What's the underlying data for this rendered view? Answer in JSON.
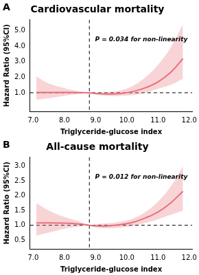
{
  "chart_data": [
    {
      "type": "line",
      "panel_label": "A",
      "title": "Cardiovascular mortality",
      "x_label": "Triglyceride-glucose index",
      "y_label": "Hazard Ratio (95%CI)",
      "annotation": "P = 0.034 for non-linearity",
      "x": [
        7.1,
        7.5,
        8.0,
        8.5,
        8.8,
        9.0,
        9.4,
        9.8,
        10.2,
        10.6,
        11.0,
        11.4,
        11.8
      ],
      "values": [
        1.02,
        1.02,
        1.02,
        1.01,
        1.0,
        0.95,
        0.92,
        0.95,
        1.08,
        1.32,
        1.7,
        2.3,
        3.2
      ],
      "ci_lower": [
        0.55,
        0.65,
        0.8,
        0.93,
        1.0,
        0.88,
        0.8,
        0.8,
        0.85,
        1.0,
        1.25,
        1.5,
        1.9
      ],
      "ci_upper": [
        2.05,
        1.6,
        1.3,
        1.08,
        1.0,
        1.0,
        1.05,
        1.15,
        1.45,
        2.0,
        2.8,
        3.9,
        5.4
      ],
      "color": "#e8707a",
      "vline": 8.8,
      "hline": 1,
      "xlim": [
        6.9,
        12.1
      ],
      "xticks": [
        {
          "value": 7,
          "label": "7.0"
        },
        {
          "value": 8,
          "label": "8.0"
        },
        {
          "value": 9,
          "label": "9.0"
        },
        {
          "value": 10,
          "label": "10.0"
        },
        {
          "value": 11,
          "label": "11.0"
        },
        {
          "value": 12,
          "label": "12.0"
        }
      ],
      "ylim": [
        -0.2,
        5.7
      ],
      "yticks": [
        {
          "value": 1,
          "label": "1.0"
        },
        {
          "value": 2,
          "label": "2.0"
        },
        {
          "value": 3,
          "label": "3.0"
        },
        {
          "value": 4,
          "label": "4.0"
        },
        {
          "value": 5,
          "label": "5.0"
        }
      ],
      "grid": false
    },
    {
      "type": "line",
      "panel_label": "B",
      "title": "All-cause mortality",
      "x_label": "Triglyceride-glucose index",
      "y_label": "Hazard Ratio (95%CI)",
      "annotation": "P = 0.012 for non-linearity",
      "x": [
        7.1,
        7.5,
        8.0,
        8.5,
        8.8,
        9.0,
        9.4,
        9.8,
        10.2,
        10.6,
        11.0,
        11.4,
        11.8
      ],
      "values": [
        1.08,
        1.08,
        1.07,
        1.04,
        1.0,
        0.98,
        0.98,
        1.02,
        1.1,
        1.25,
        1.45,
        1.75,
        2.15
      ],
      "ci_lower": [
        0.65,
        0.75,
        0.88,
        0.96,
        1.0,
        0.93,
        0.9,
        0.92,
        0.98,
        1.08,
        1.2,
        1.35,
        1.5
      ],
      "ci_upper": [
        1.75,
        1.5,
        1.28,
        1.12,
        1.0,
        1.03,
        1.07,
        1.12,
        1.23,
        1.45,
        1.8,
        2.3,
        3.0
      ],
      "color": "#e8707a",
      "vline": 8.8,
      "hline": 1,
      "xlim": [
        6.9,
        12.1
      ],
      "xticks": [
        {
          "value": 7,
          "label": "7.0"
        },
        {
          "value": 8,
          "label": "8.0"
        },
        {
          "value": 9,
          "label": "9.0"
        },
        {
          "value": 10,
          "label": "10.0"
        },
        {
          "value": 11,
          "label": "11.0"
        },
        {
          "value": 12,
          "label": "12.0"
        }
      ],
      "ylim": [
        0.2,
        3.3
      ],
      "yticks": [
        {
          "value": 0.5,
          "label": "0.5"
        },
        {
          "value": 1,
          "label": "1.0"
        },
        {
          "value": 1.5,
          "label": "1.5"
        },
        {
          "value": 2,
          "label": "2.0"
        },
        {
          "value": 2.5,
          "label": "2.5"
        },
        {
          "value": 3,
          "label": "3.0"
        }
      ],
      "grid": false
    }
  ]
}
